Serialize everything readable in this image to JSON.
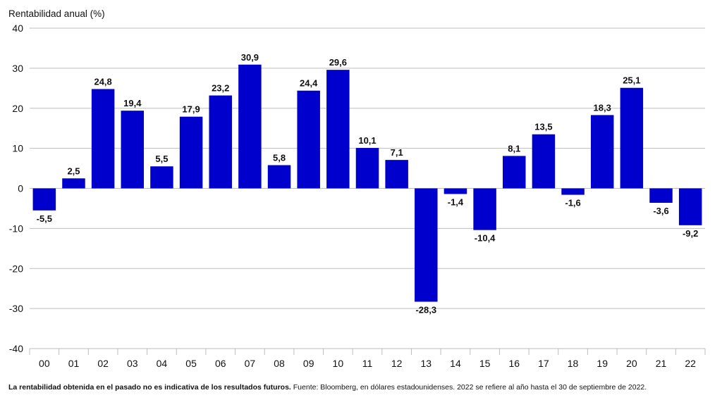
{
  "chart_data": {
    "type": "bar",
    "ylabel": "Rentabilidad anual (%)",
    "xlabel": "",
    "categories": [
      "00",
      "01",
      "02",
      "03",
      "04",
      "05",
      "06",
      "07",
      "08",
      "09",
      "10",
      "11",
      "12",
      "13",
      "14",
      "15",
      "16",
      "17",
      "18",
      "19",
      "20",
      "21",
      "22"
    ],
    "values": [
      -5.5,
      2.5,
      24.8,
      19.4,
      5.5,
      17.9,
      23.2,
      30.9,
      5.8,
      24.4,
      29.6,
      10.1,
      7.1,
      -28.3,
      -1.4,
      -10.4,
      8.1,
      13.5,
      -1.6,
      18.3,
      25.1,
      -3.6,
      -9.2
    ],
    "data_labels": [
      "-5,5",
      "2,5",
      "24,8",
      "19,4",
      "5,5",
      "17,9",
      "23,2",
      "30,9",
      "5,8",
      "24,4",
      "29,6",
      "10,1",
      "7,1",
      "-28,3",
      "-1,4",
      "-10,4",
      "8,1",
      "13,5",
      "-1,6",
      "18,3",
      "25,1",
      "-3,6",
      "-9,2"
    ],
    "ylim": [
      -40,
      40
    ],
    "yticks": [
      40,
      30,
      20,
      10,
      0,
      -10,
      -20,
      -30,
      -40
    ],
    "ytick_labels": [
      "40",
      "30",
      "20",
      "10",
      "0",
      "-10",
      "-20",
      "-30",
      "-40"
    ],
    "grid": "horizontal",
    "legend": "none",
    "bar_color": "#0000cc",
    "gridline_color": "#bdbdbd"
  },
  "footnote": {
    "bold": "La rentabilidad obtenida en el pasado no es indicativa de los resultados futuros.",
    "text": " Fuente: Bloomberg, en dólares estadounidenses. 2022 se refiere al año hasta el 30 de septiembre de 2022."
  }
}
